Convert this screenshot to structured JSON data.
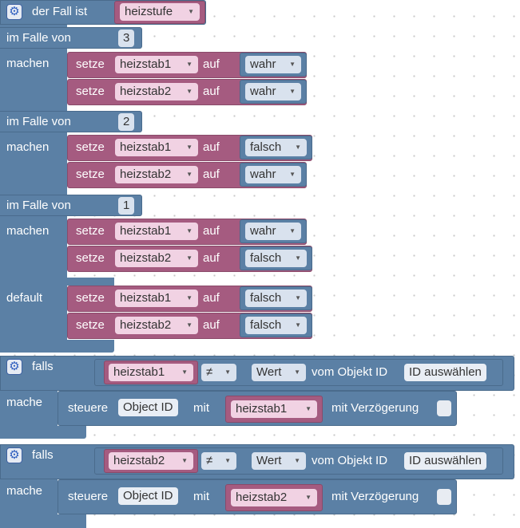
{
  "switch_block": {
    "header": "der Fall ist",
    "variable": "heizstufe",
    "case_label": "im Falle von",
    "do_label": "machen",
    "default_label": "default",
    "set_label": "setze",
    "to_label": "auf",
    "cases": [
      {
        "value": "3",
        "rows": [
          {
            "var": "heizstab1",
            "value": "wahr"
          },
          {
            "var": "heizstab2",
            "value": "wahr"
          }
        ]
      },
      {
        "value": "2",
        "rows": [
          {
            "var": "heizstab1",
            "value": "falsch"
          },
          {
            "var": "heizstab2",
            "value": "wahr"
          }
        ]
      },
      {
        "value": "1",
        "rows": [
          {
            "var": "heizstab1",
            "value": "wahr"
          },
          {
            "var": "heizstab2",
            "value": "falsch"
          }
        ]
      }
    ],
    "default_rows": [
      {
        "var": "heizstab1",
        "value": "falsch"
      },
      {
        "var": "heizstab2",
        "value": "falsch"
      }
    ]
  },
  "if_blocks": [
    {
      "if_label": "falls",
      "do_label": "mache",
      "var": "heizstab1",
      "operator": "≠",
      "value_type": "Wert",
      "of_object": "vom Objekt ID",
      "object_select": "ID auswählen",
      "control_label": "steuere",
      "object_id": "Object ID",
      "with_label": "mit",
      "control_var": "heizstab1",
      "delay_label": "mit Verzögerung"
    },
    {
      "if_label": "falls",
      "do_label": "mache",
      "var": "heizstab2",
      "operator": "≠",
      "value_type": "Wert",
      "of_object": "vom Objekt ID",
      "object_select": "ID auswählen",
      "control_label": "steuere",
      "object_id": "Object ID",
      "with_label": "mit",
      "control_var": "heizstab2",
      "delay_label": "mit Verzögerung"
    }
  ],
  "icons": {
    "gear": "gear-icon",
    "dropdown": "chevron-down-icon"
  },
  "colors": {
    "control": "#5b80a5",
    "variable": "#a55b80",
    "variable_field": "#f1d2e3",
    "workspace": "#ffffff"
  }
}
